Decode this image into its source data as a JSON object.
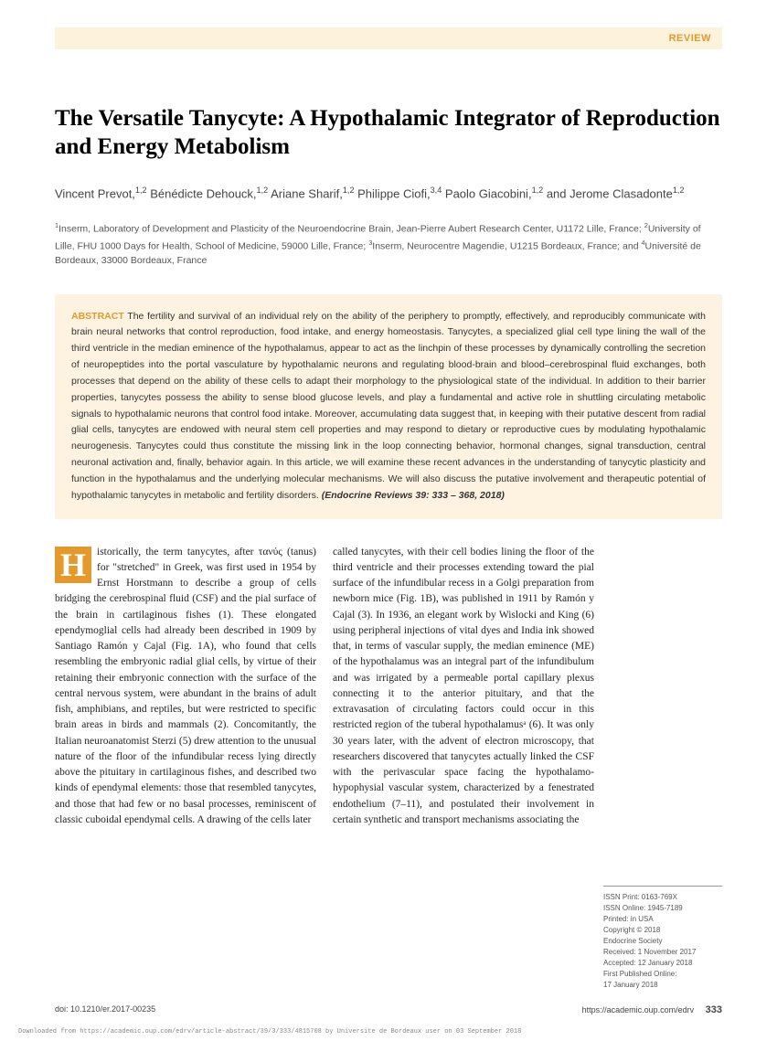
{
  "header": {
    "review_label": "REVIEW"
  },
  "title": "The Versatile Tanycyte: A Hypothalamic Integrator of Reproduction and Energy Metabolism",
  "authors_html": "Vincent Prevot,<sup>1,2</sup> Bénédicte Dehouck,<sup>1,2</sup> Ariane Sharif,<sup>1,2</sup> Philippe Ciofi,<sup>3,4</sup> Paolo Giacobini,<sup>1,2</sup> and Jerome Clasadonte<sup>1,2</sup>",
  "affiliations_html": "<sup>1</sup>Inserm, Laboratory of Development and Plasticity of the Neuroendocrine Brain, Jean-Pierre Aubert Research Center, U1172 Lille, France; <sup>2</sup>University of Lille, FHU 1000 Days for Health, School of Medicine, 59000 Lille, France; <sup>3</sup>Inserm, Neurocentre Magendie, U1215 Bordeaux, France; and <sup>4</sup>Université de Bordeaux, 33000 Bordeaux, France",
  "abstract": {
    "label": "ABSTRACT",
    "text": "The fertility and survival of an individual rely on the ability of the periphery to promptly, effectively, and reproducibly communicate with brain neural networks that control reproduction, food intake, and energy homeostasis. Tanycytes, a specialized glial cell type lining the wall of the third ventricle in the median eminence of the hypothalamus, appear to act as the linchpin of these processes by dynamically controlling the secretion of neuropeptides into the portal vasculature by hypothalamic neurons and regulating blood-brain and blood–cerebrospinal fluid exchanges, both processes that depend on the ability of these cells to adapt their morphology to the physiological state of the individual. In addition to their barrier properties, tanycytes possess the ability to sense blood glucose levels, and play a fundamental and active role in shuttling circulating metabolic signals to hypothalamic neurons that control food intake. Moreover, accumulating data suggest that, in keeping with their putative descent from radial glial cells, tanycytes are endowed with neural stem cell properties and may respond to dietary or reproductive cues by modulating hypothalamic neurogenesis. Tanycytes could thus constitute the missing link in the loop connecting behavior, hormonal changes, signal transduction, central neuronal activation and, finally, behavior again. In this article, we will examine these recent advances in the understanding of tanycytic plasticity and function in the hypothalamus and the underlying molecular mechanisms. We will also discuss the putative involvement and therapeutic potential of hypothalamic tanycytes in metabolic and fertility disorders.",
    "citation": "(Endocrine Reviews 39: 333 – 368, 2018)"
  },
  "body": {
    "dropcap": "H",
    "col1": "istorically, the term tanycytes, after τανύς (tanus) for \"stretched\" in Greek, was first used in 1954 by Ernst Horstmann to describe a group of cells bridging the cerebrospinal fluid (CSF) and the pial surface of the brain in cartilaginous fishes (1). These elongated ependymoglial cells had already been described in 1909 by Santiago Ramón y Cajal (Fig. 1A), who found that cells resembling the embryonic radial glial cells, by virtue of their retaining their embryonic connection with the surface of the central nervous system, were abundant in the brains of adult fish, amphibians, and reptiles, but were restricted to specific brain areas in birds and mammals (2). Concomitantly, the Italian neuroanatomist Sterzi (5) drew attention to the unusual nature of the floor of the infundibular recess lying directly above the pituitary in cartilaginous fishes, and described two kinds of ependymal elements: those that resembled tanycytes, and those that had few or no basal processes, reminiscent of classic cuboidal ependymal cells. A drawing of the cells later",
    "col2": "called tanycytes, with their cell bodies lining the floor of the third ventricle and their processes extending toward the pial surface of the infundibular recess in a Golgi preparation from newborn mice (Fig. 1B), was published in 1911 by Ramón y Cajal (3). In 1936, an elegant work by Wislocki and King (6) using peripheral injections of vital dyes and India ink showed that, in terms of vascular supply, the median eminence (ME) of the hypothalamus was an integral part of the infundibulum and was irrigated by a permeable portal capillary plexus connecting it to the anterior pituitary, and that the extravasation of circulating factors could occur in this restricted region of the tuberal hypothalamusᵃ (6). It was only 30 years later, with the advent of electron microscopy, that researchers discovered that tanycytes actually linked the CSF with the perivascular space facing the hypothalamo-hypophysial vascular system, characterized by a fenestrated endothelium (7–11), and postulated their involvement in certain synthetic and transport mechanisms associating the"
  },
  "sidebar": {
    "lines": [
      "ISSN Print: 0163-769X",
      "ISSN Online: 1945-7189",
      "Printed: in USA",
      "Copyright © 2018",
      "  Endocrine Society",
      "Received: 1 November 2017",
      "Accepted: 12 January 2018",
      "First Published Online:",
      "  17 January 2018"
    ]
  },
  "footer": {
    "doi": "doi: 10.1210/er.2017-00235",
    "url": "https://academic.oup.com/edrv",
    "page": "333"
  },
  "download_note": "Downloaded from https://academic.oup.com/edrv/article-abstract/39/3/333/4815708\nby Universite de Bordeaux user\non 03 September 2018"
}
